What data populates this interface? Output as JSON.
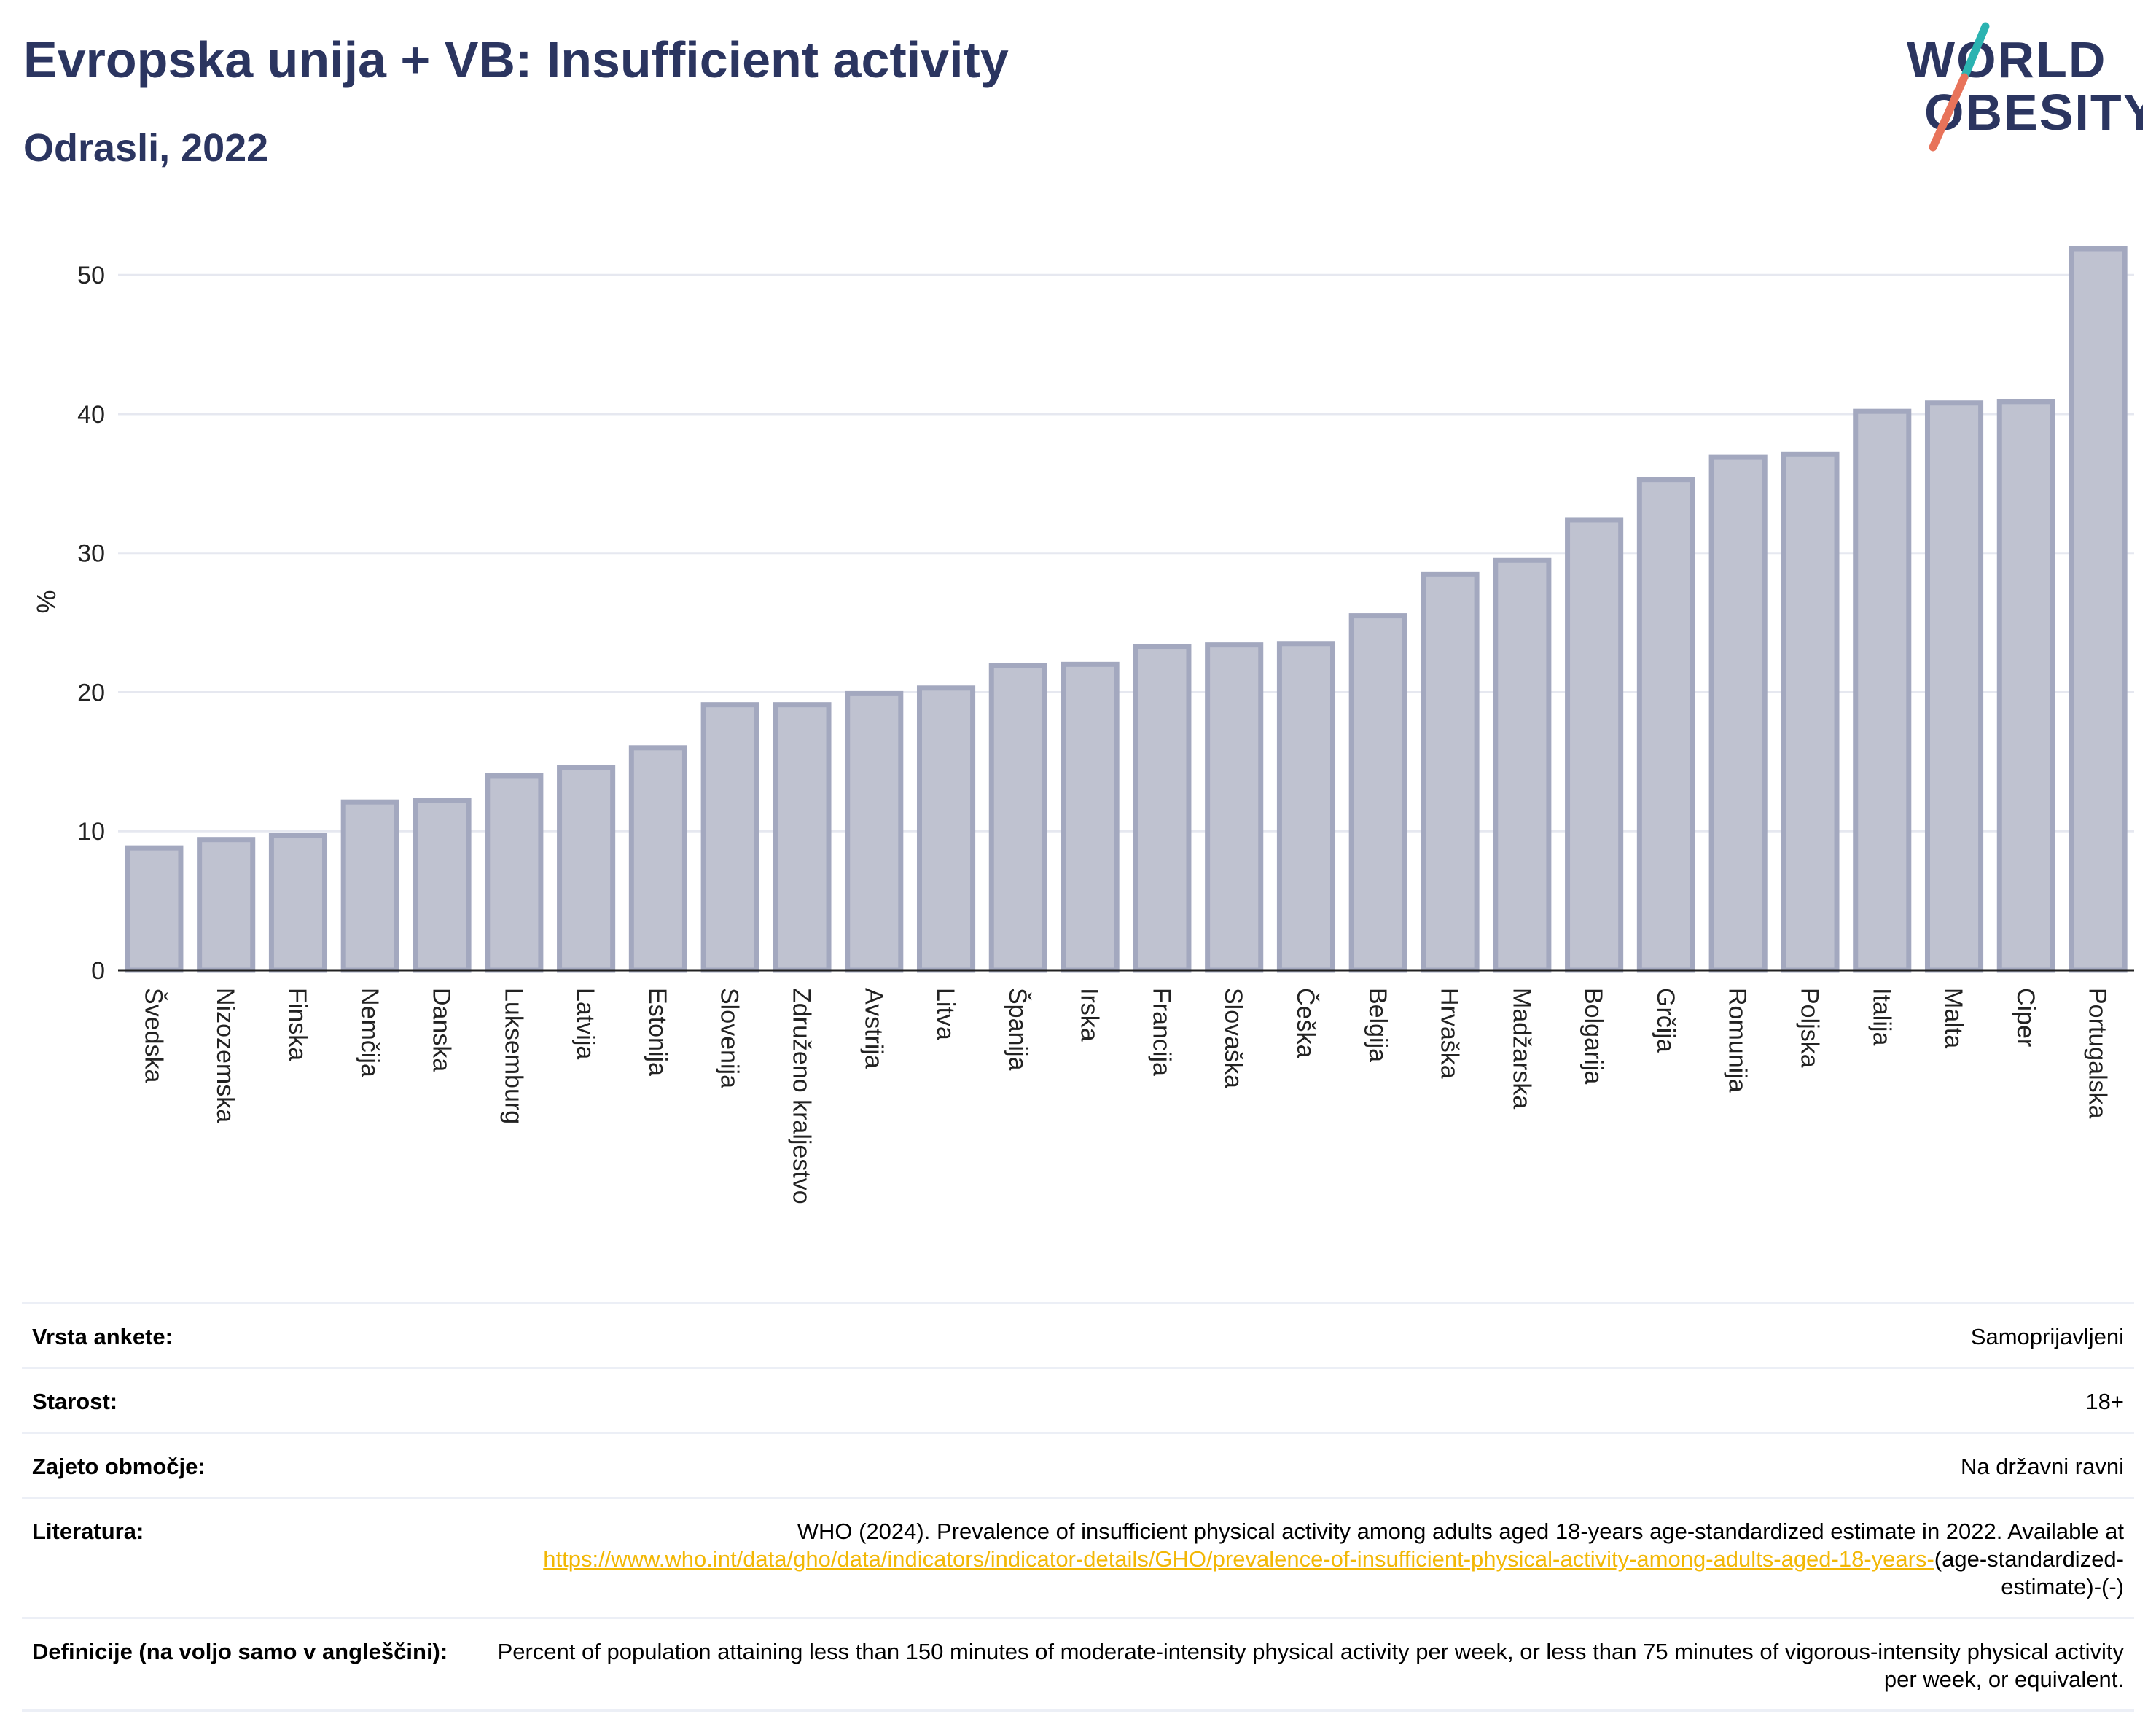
{
  "header": {
    "title": "Evropska unija + VB: Insufficient activity",
    "subtitle": "Odrasli, 2022"
  },
  "logo": {
    "line1": "WORLD",
    "line2": "OBESITY",
    "colors": {
      "text": "#2b3560",
      "slash_top": "#2bb3b1",
      "slash_bottom": "#e8735a"
    }
  },
  "chart_data": {
    "type": "bar",
    "ylabel": "%",
    "xlabel": "",
    "ylim": [
      0,
      53
    ],
    "yticks": [
      0,
      10,
      20,
      30,
      40,
      50
    ],
    "grid": true,
    "categories": [
      "Švedska",
      "Nizozemska",
      "Finska",
      "Nemčija",
      "Danska",
      "Luksemburg",
      "Latvija",
      "Estonija",
      "Slovenija",
      "Združeno kraljestvo",
      "Avstrija",
      "Litva",
      "Španija",
      "Irska",
      "Francija",
      "Slovaška",
      "Češka",
      "Belgija",
      "Hrvaška",
      "Madžarska",
      "Bolgarija",
      "Grčija",
      "Romunija",
      "Poljska",
      "Italija",
      "Malta",
      "Ciper",
      "Portugalska"
    ],
    "values": [
      8.8,
      9.4,
      9.7,
      12.1,
      12.2,
      14.0,
      14.6,
      16.0,
      19.1,
      19.1,
      19.9,
      20.3,
      21.9,
      22.0,
      23.3,
      23.4,
      23.5,
      25.5,
      28.5,
      29.5,
      32.4,
      35.3,
      36.9,
      37.1,
      40.2,
      40.8,
      40.9,
      51.9
    ],
    "colors": {
      "bar_fill": "#bfc2d0",
      "bar_stroke": "#a3a8bf",
      "grid": "#e6e8f0",
      "axis": "#222222"
    }
  },
  "meta": {
    "rows": [
      {
        "label": "Vrsta ankete:",
        "value": "Samoprijavljeni"
      },
      {
        "label": "Starost:",
        "value": "18+"
      },
      {
        "label": "Zajeto območje:",
        "value": "Na državni ravni"
      },
      {
        "label": "Literatura:",
        "value": "WHO (2024). Prevalence of insufficient physical activity among adults aged 18-years age-standardized estimate in 2022. Available at",
        "link": "https://www.who.int/data/gho/data/indicators/indicator-details/GHO/prevalence-of-insufficient-physical-activity-among-adults-aged-18-years-",
        "suffix": "(age-standardized-estimate)-(-)"
      },
      {
        "label": "Definicije (na voljo samo v angleščini):",
        "value": "Percent of population attaining less than 150 minutes of moderate-intensity physical activity per week, or less than 75 minutes of vigorous-intensity physical activity per week, or equivalent."
      }
    ]
  }
}
